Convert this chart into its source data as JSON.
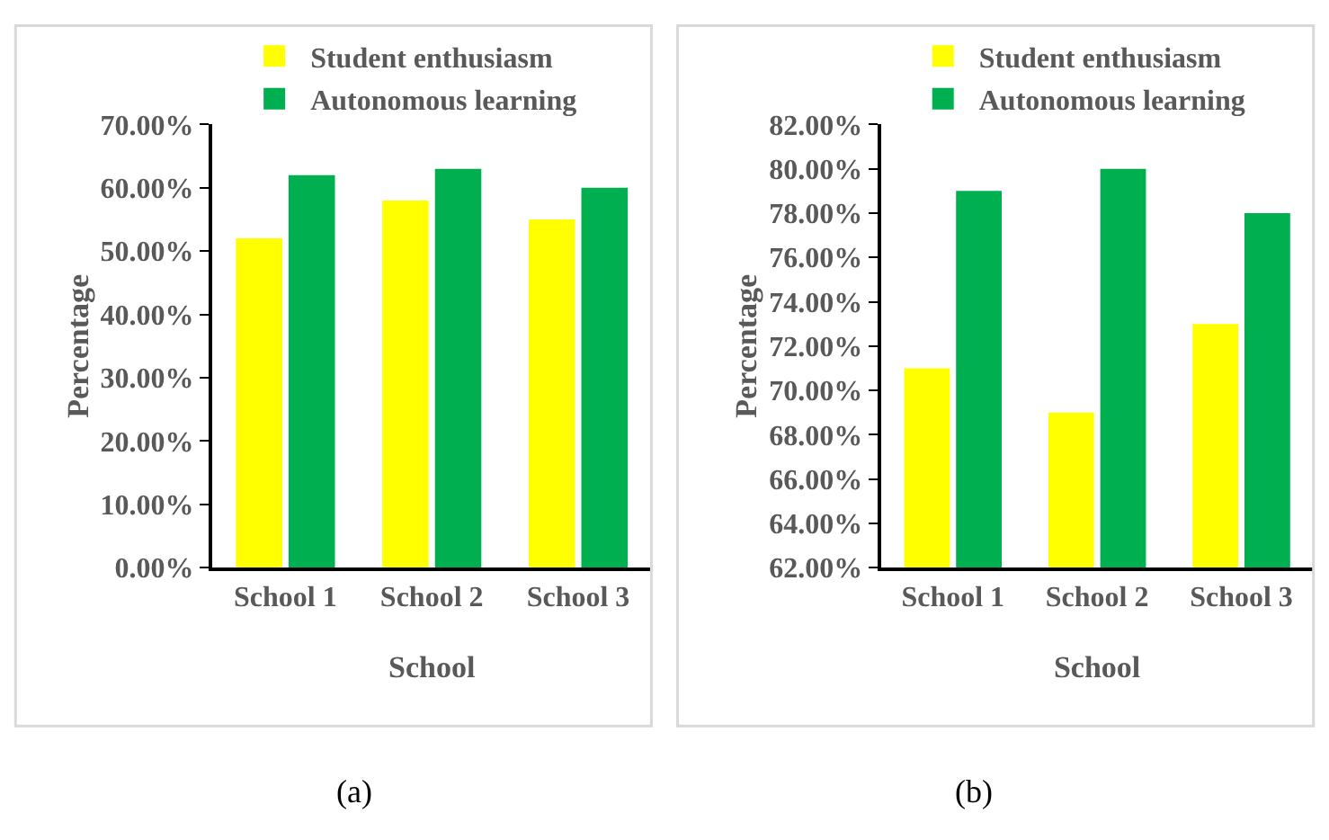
{
  "chart_data": [
    {
      "type": "bar",
      "categories": [
        "School 1",
        "School 2",
        "School 3"
      ],
      "xlabel": "School",
      "ylabel": "Percentage",
      "legend": "top",
      "series": [
        {
          "name": "Student enthusiasm",
          "color": "#ffff00",
          "values": [
            52,
            58,
            55
          ]
        },
        {
          "name": "Autonomous learning",
          "color": "#00b050",
          "values": [
            62,
            63,
            60
          ]
        }
      ],
      "ylim": [
        0,
        70
      ],
      "yticks": [
        {
          "value": 0,
          "label": "0.00%"
        },
        {
          "value": 10,
          "label": "10.00%"
        },
        {
          "value": 20,
          "label": "20.00%"
        },
        {
          "value": 30,
          "label": "30.00%"
        },
        {
          "value": 40,
          "label": "40.00%"
        },
        {
          "value": 50,
          "label": "50.00%"
        },
        {
          "value": 60,
          "label": "60.00%"
        },
        {
          "value": 70,
          "label": "70.00%"
        }
      ],
      "annotations": [
        "(a)"
      ]
    },
    {
      "type": "bar",
      "categories": [
        "School 1",
        "School 2",
        "School 3"
      ],
      "xlabel": "School",
      "ylabel": "Percentage",
      "legend": "top",
      "series": [
        {
          "name": "Student enthusiasm",
          "color": "#ffff00",
          "values": [
            71,
            69,
            73
          ]
        },
        {
          "name": "Autonomous learning",
          "color": "#00b050",
          "values": [
            79,
            80,
            78
          ]
        }
      ],
      "ylim": [
        62,
        82
      ],
      "yticks": [
        {
          "value": 62,
          "label": "62.00%"
        },
        {
          "value": 64,
          "label": "64.00%"
        },
        {
          "value": 66,
          "label": "66.00%"
        },
        {
          "value": 68,
          "label": "68.00%"
        },
        {
          "value": 70,
          "label": "70.00%"
        },
        {
          "value": 72,
          "label": "72.00%"
        },
        {
          "value": 74,
          "label": "74.00%"
        },
        {
          "value": 76,
          "label": "76.00%"
        },
        {
          "value": 78,
          "label": "78.00%"
        },
        {
          "value": 80,
          "label": "80.00%"
        },
        {
          "value": 82,
          "label": "82.00%"
        }
      ],
      "annotations": [
        "(b)"
      ]
    }
  ]
}
